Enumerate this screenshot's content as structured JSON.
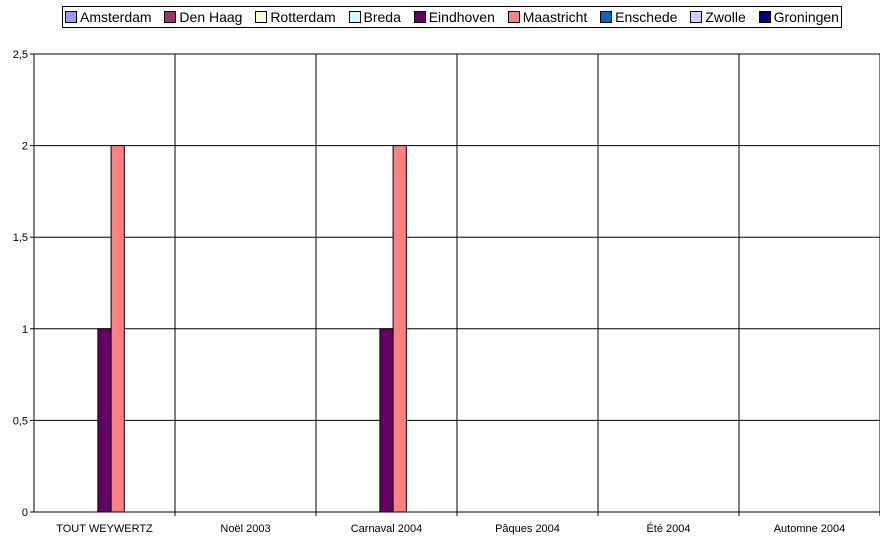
{
  "chart_data": {
    "type": "bar",
    "title": "",
    "xlabel": "",
    "ylabel": "",
    "ylim": [
      0,
      2.5
    ],
    "yticks": [
      0,
      0.5,
      1,
      1.5,
      2,
      2.5
    ],
    "ytick_labels": [
      "0",
      "0,5",
      "1",
      "1,5",
      "2",
      "2,5"
    ],
    "grid": true,
    "legend_position": "top",
    "categories": [
      "TOUT WEYWERTZ",
      "Noël 2003",
      "Carnaval 2004",
      "Pâques 2004",
      "Été 2004",
      "Automne 2004"
    ],
    "series": [
      {
        "name": "Amsterdam",
        "color": "#9999ff",
        "values": [
          0,
          0,
          0,
          0,
          0,
          0
        ]
      },
      {
        "name": "Den Haag",
        "color": "#993366",
        "values": [
          0,
          0,
          0,
          0,
          0,
          0
        ]
      },
      {
        "name": "Rotterdam",
        "color": "#ffffcc",
        "values": [
          0,
          0,
          0,
          0,
          0,
          0
        ]
      },
      {
        "name": "Breda",
        "color": "#ccffff",
        "values": [
          0,
          0,
          0,
          0,
          0,
          0
        ]
      },
      {
        "name": "Eindhoven",
        "color": "#660066",
        "values": [
          1,
          0,
          1,
          0,
          0,
          0
        ]
      },
      {
        "name": "Maastricht",
        "color": "#ff8080",
        "values": [
          2,
          0,
          2,
          0,
          0,
          0
        ]
      },
      {
        "name": "Enschede",
        "color": "#0066cc",
        "values": [
          0,
          0,
          0,
          0,
          0,
          0
        ]
      },
      {
        "name": "Zwolle",
        "color": "#ccccff",
        "values": [
          0,
          0,
          0,
          0,
          0,
          0
        ]
      },
      {
        "name": "Groningen",
        "color": "#000080",
        "values": [
          0,
          0,
          0,
          0,
          0,
          0
        ]
      }
    ]
  }
}
